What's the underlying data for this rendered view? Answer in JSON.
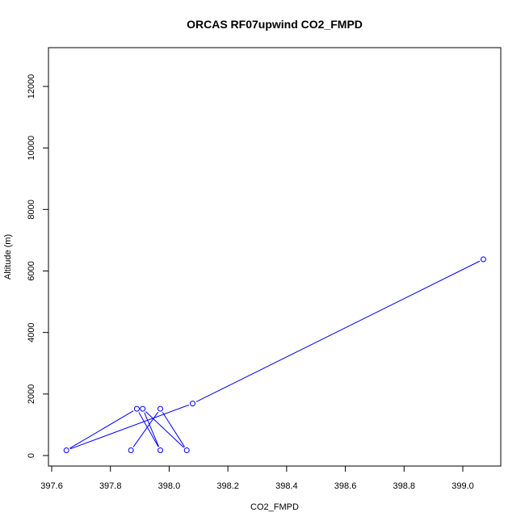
{
  "chart_data": {
    "type": "line",
    "title": "ORCAS RF07upwind CO2_FMPD",
    "xlabel": "CO2_FMPD",
    "ylabel": "Altitude (m)",
    "xlim": [
      397.6,
      399.1
    ],
    "ylim": [
      0,
      13000
    ],
    "x_ticks": [
      397.6,
      397.8,
      398.0,
      398.2,
      398.4,
      398.6,
      398.8,
      399.0
    ],
    "x_tick_labels": [
      "397.6",
      "397.8",
      "398.0",
      "398.2",
      "398.4",
      "398.6",
      "398.8",
      "399.0"
    ],
    "y_ticks": [
      0,
      2000,
      4000,
      6000,
      8000,
      10000,
      12000
    ],
    "y_tick_labels": [
      "0",
      "2000",
      "4000",
      "6000",
      "8000",
      "10000",
      "12000"
    ],
    "grid": false,
    "series": [
      {
        "color": "#0000ff",
        "marker": "open-circle",
        "points": [
          {
            "x": 399.07,
            "y": 6380
          },
          {
            "x": 398.08,
            "y": 1690
          },
          {
            "x": 397.65,
            "y": 170
          },
          {
            "x": 397.89,
            "y": 1520
          },
          {
            "x": 397.97,
            "y": 170
          },
          {
            "x": 397.91,
            "y": 1520
          },
          {
            "x": 398.06,
            "y": 170
          },
          {
            "x": 397.97,
            "y": 1520
          },
          {
            "x": 397.87,
            "y": 170
          }
        ]
      }
    ]
  }
}
